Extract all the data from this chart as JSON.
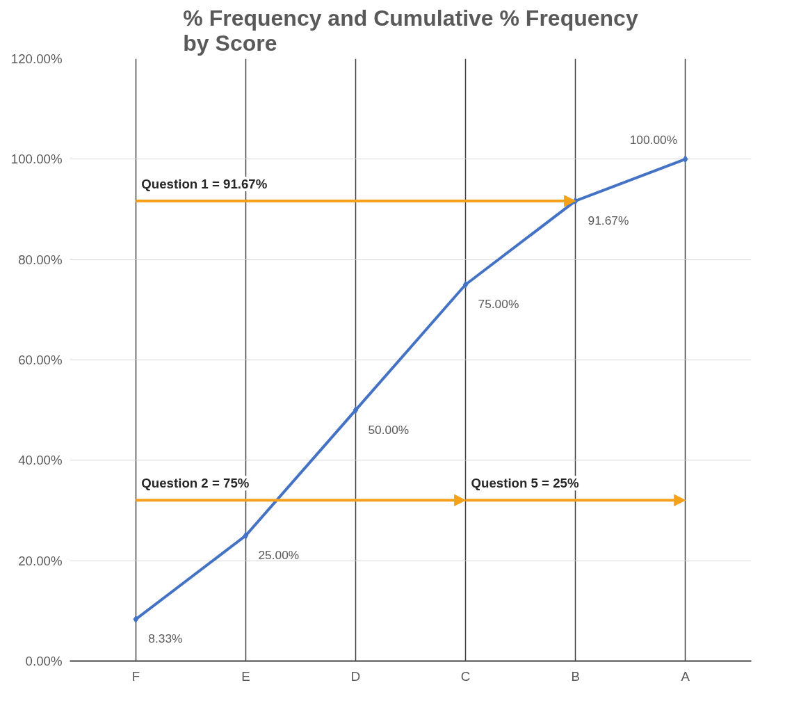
{
  "chart_data": {
    "type": "line",
    "title": "% Frequency and Cumulative % Frequency\nby Score",
    "categories": [
      "F",
      "E",
      "D",
      "C",
      "B",
      "A"
    ],
    "series": [
      {
        "color": "#4472c4",
        "marker": "diamond",
        "values": [
          8.33,
          25,
          50,
          75,
          91.67,
          100
        ],
        "value_labels": [
          "8.33%",
          "25.00%",
          "50.00%",
          "75.00%",
          "91.67%",
          "100.00%"
        ]
      }
    ],
    "annotations": [
      {
        "text": "Question 1 = 91.67%",
        "x": "B",
        "y": 91.67
      },
      "Question 2 = 75%",
      "Question 5 = 25%"
    ],
    "ylim": [
      0,
      120
    ],
    "yticks": [
      {
        "value": 0,
        "label": "0.00%"
      },
      {
        "value": 20,
        "label": "20.00%"
      },
      {
        "value": 40,
        "label": "40.00%"
      },
      {
        "value": 60,
        "label": "60.00%"
      },
      {
        "value": 80,
        "label": "80.00%"
      },
      {
        "value": 100,
        "label": "100.00%"
      },
      {
        "value": 120,
        "label": "120.00%"
      }
    ],
    "grid": true
  }
}
